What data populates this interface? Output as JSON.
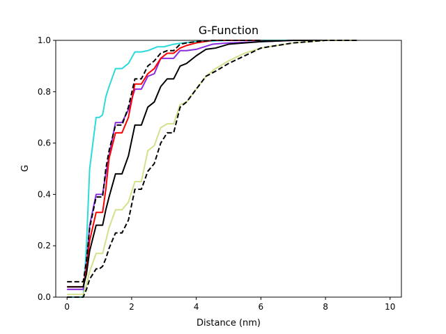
{
  "chart_data": {
    "type": "line",
    "title": "G-Function",
    "xlabel": "Distance (nm)",
    "ylabel": "G",
    "xlim": [
      -0.35,
      10.35
    ],
    "ylim": [
      0,
      1
    ],
    "xticks": [
      0,
      2,
      4,
      6,
      8,
      10
    ],
    "yticks": [
      0.0,
      0.2,
      0.4,
      0.6,
      0.8,
      1.0
    ],
    "ytick_labels": [
      "0.0",
      "0.2",
      "0.4",
      "0.6",
      "0.8",
      "1.0"
    ],
    "grid": false,
    "legend": "none",
    "series": [
      {
        "color": "#2adadb",
        "dash": "solid",
        "x": [
          0,
          0.5,
          0.6,
          0.7,
          0.9,
          1.0,
          1.1,
          1.2,
          1.3,
          1.5,
          1.7,
          1.9,
          2.1,
          2.3,
          2.5,
          2.8,
          3.0,
          3.3,
          3.6,
          4.0,
          5.0,
          6.0,
          7.0
        ],
        "y": [
          0.0,
          0.0,
          0.2,
          0.5,
          0.7,
          0.7,
          0.71,
          0.78,
          0.82,
          0.89,
          0.89,
          0.91,
          0.955,
          0.955,
          0.96,
          0.975,
          0.975,
          0.985,
          0.99,
          0.995,
          1.0,
          1.0,
          1.0
        ]
      },
      {
        "color": "#8a2be2",
        "dash": "solid",
        "x": [
          0,
          0.5,
          0.6,
          0.7,
          0.9,
          1.0,
          1.1,
          1.2,
          1.3,
          1.5,
          1.7,
          1.9,
          2.1,
          2.3,
          2.5,
          2.7,
          2.9,
          3.1,
          3.3,
          3.5,
          3.7,
          4.0,
          4.5,
          5.0,
          6.0,
          7.0,
          8.0
        ],
        "y": [
          0.03,
          0.03,
          0.12,
          0.28,
          0.4,
          0.4,
          0.4,
          0.48,
          0.55,
          0.68,
          0.68,
          0.73,
          0.81,
          0.81,
          0.86,
          0.87,
          0.93,
          0.93,
          0.93,
          0.96,
          0.96,
          0.965,
          0.985,
          0.99,
          0.995,
          1.0,
          1.0
        ]
      },
      {
        "color": "#ff0000",
        "dash": "solid",
        "x": [
          0,
          0.5,
          0.6,
          0.7,
          0.9,
          1.0,
          1.1,
          1.2,
          1.3,
          1.5,
          1.7,
          1.9,
          2.1,
          2.3,
          2.5,
          2.7,
          2.9,
          3.1,
          3.3,
          3.5,
          3.7,
          4.0,
          4.5,
          5.0,
          6.0
        ],
        "y": [
          0.04,
          0.04,
          0.11,
          0.22,
          0.33,
          0.33,
          0.33,
          0.42,
          0.54,
          0.64,
          0.64,
          0.7,
          0.83,
          0.83,
          0.87,
          0.89,
          0.93,
          0.95,
          0.95,
          0.97,
          0.98,
          0.99,
          1.0,
          1.0,
          1.0
        ]
      },
      {
        "color": "#000000",
        "dash": "dashed",
        "x": [
          0,
          0.5,
          0.6,
          0.7,
          0.9,
          1.0,
          1.1,
          1.2,
          1.3,
          1.5,
          1.7,
          1.9,
          2.1,
          2.3,
          2.5,
          2.7,
          2.9,
          3.1,
          3.3,
          3.5,
          3.7,
          4.0,
          4.5,
          5.0,
          6.0
        ],
        "y": [
          0.06,
          0.06,
          0.14,
          0.27,
          0.39,
          0.39,
          0.39,
          0.5,
          0.57,
          0.67,
          0.67,
          0.74,
          0.85,
          0.85,
          0.9,
          0.92,
          0.95,
          0.96,
          0.96,
          0.985,
          0.99,
          0.995,
          1.0,
          1.0,
          1.0
        ]
      },
      {
        "color": "#000000",
        "dash": "solid",
        "x": [
          0,
          0.5,
          0.6,
          0.7,
          0.9,
          1.0,
          1.1,
          1.2,
          1.3,
          1.5,
          1.7,
          1.9,
          2.1,
          2.3,
          2.5,
          2.7,
          2.9,
          3.1,
          3.3,
          3.5,
          3.7,
          4.0,
          4.3,
          4.6,
          5.0,
          5.5,
          6.0,
          7.0,
          8.0
        ],
        "y": [
          0.04,
          0.04,
          0.09,
          0.18,
          0.28,
          0.28,
          0.28,
          0.34,
          0.39,
          0.48,
          0.48,
          0.55,
          0.67,
          0.67,
          0.74,
          0.76,
          0.82,
          0.85,
          0.85,
          0.9,
          0.91,
          0.94,
          0.965,
          0.97,
          0.985,
          0.99,
          0.995,
          1.0,
          1.0
        ]
      },
      {
        "color": "#d4e08a",
        "dash": "solid",
        "x": [
          0,
          0.5,
          0.6,
          0.7,
          0.9,
          1.0,
          1.1,
          1.2,
          1.3,
          1.5,
          1.7,
          1.9,
          2.1,
          2.3,
          2.5,
          2.7,
          2.9,
          3.1,
          3.3,
          3.5,
          3.7,
          4.0,
          4.3,
          4.6,
          5.0,
          5.5,
          6.0,
          6.5,
          7.0,
          8.0,
          9.0
        ],
        "y": [
          0.01,
          0.01,
          0.05,
          0.1,
          0.17,
          0.17,
          0.17,
          0.22,
          0.27,
          0.34,
          0.34,
          0.37,
          0.45,
          0.45,
          0.57,
          0.59,
          0.66,
          0.675,
          0.675,
          0.75,
          0.76,
          0.81,
          0.86,
          0.89,
          0.92,
          0.95,
          0.97,
          0.98,
          0.99,
          1.0,
          1.0
        ]
      },
      {
        "color": "#000000",
        "dash": "dashed",
        "x": [
          0,
          0.5,
          0.6,
          0.7,
          0.9,
          1.0,
          1.1,
          1.2,
          1.3,
          1.5,
          1.7,
          1.9,
          2.1,
          2.3,
          2.5,
          2.7,
          2.9,
          3.1,
          3.3,
          3.5,
          3.7,
          4.0,
          4.3,
          4.6,
          5.0,
          5.5,
          6.0,
          6.5,
          7.0,
          8.0,
          9.0
        ],
        "y": [
          0.0,
          0.0,
          0.03,
          0.07,
          0.11,
          0.11,
          0.12,
          0.15,
          0.19,
          0.25,
          0.25,
          0.3,
          0.42,
          0.42,
          0.49,
          0.52,
          0.6,
          0.64,
          0.64,
          0.74,
          0.76,
          0.81,
          0.86,
          0.88,
          0.91,
          0.94,
          0.97,
          0.98,
          0.99,
          1.0,
          1.0
        ]
      }
    ]
  }
}
